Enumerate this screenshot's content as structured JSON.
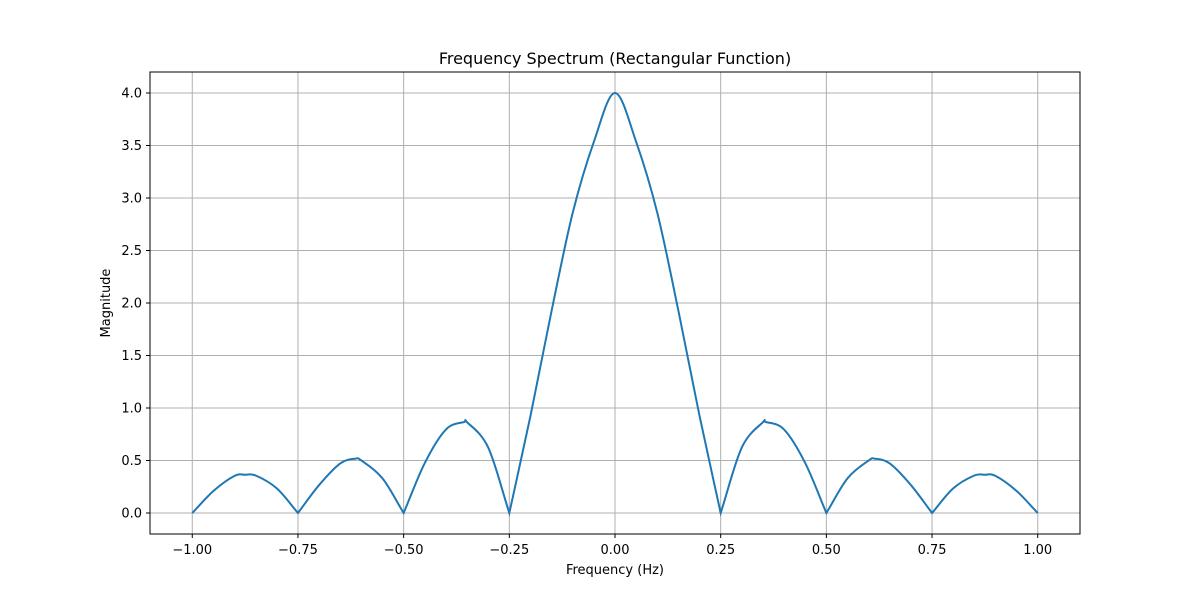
{
  "chart_data": {
    "type": "line",
    "title": "Frequency Spectrum (Rectangular Function)",
    "xlabel": "Frequency (Hz)",
    "ylabel": "Magnitude",
    "xlim": [
      -1.1,
      1.1
    ],
    "ylim": [
      -0.2,
      4.2
    ],
    "grid": true,
    "x_ticks": [
      -1.0,
      -0.75,
      -0.5,
      -0.25,
      0.0,
      0.25,
      0.5,
      0.75,
      1.0
    ],
    "x_tick_labels": [
      "−1.00",
      "−0.75",
      "−0.50",
      "−0.25",
      "0.00",
      "0.25",
      "0.50",
      "0.75",
      "1.00"
    ],
    "y_ticks": [
      0.0,
      0.5,
      1.0,
      1.5,
      2.0,
      2.5,
      3.0,
      3.5,
      4.0
    ],
    "y_tick_labels": [
      "0.0",
      "0.5",
      "1.0",
      "1.5",
      "2.0",
      "2.5",
      "3.0",
      "3.5",
      "4.0"
    ],
    "series": [
      {
        "color": "#1f77b4",
        "x": [
          -1.0,
          -0.95,
          -0.9,
          -0.875,
          -0.85,
          -0.8,
          -0.75,
          -0.7,
          -0.65,
          -0.615,
          -0.6,
          -0.55,
          -0.5,
          -0.45,
          -0.4,
          -0.357,
          -0.35,
          -0.3,
          -0.25,
          -0.2,
          -0.15,
          -0.1,
          -0.05,
          0.0,
          0.05,
          0.1,
          0.15,
          0.2,
          0.25,
          0.3,
          0.35,
          0.357,
          0.4,
          0.45,
          0.5,
          0.55,
          0.6,
          0.615,
          0.65,
          0.7,
          0.75,
          0.8,
          0.85,
          0.875,
          0.9,
          0.95,
          1.0
        ],
        "y": [
          0.0,
          0.21,
          0.354,
          0.364,
          0.357,
          0.234,
          0.0,
          0.266,
          0.472,
          0.517,
          0.5,
          0.33,
          0.0,
          0.476,
          0.795,
          0.866,
          0.865,
          0.624,
          0.0,
          0.924,
          1.926,
          2.859,
          3.535,
          4.0,
          3.535,
          2.859,
          1.926,
          0.924,
          0.0,
          0.624,
          0.865,
          0.866,
          0.795,
          0.476,
          0.0,
          0.33,
          0.5,
          0.517,
          0.472,
          0.266,
          0.0,
          0.234,
          0.357,
          0.364,
          0.354,
          0.21,
          0.0
        ]
      }
    ]
  }
}
